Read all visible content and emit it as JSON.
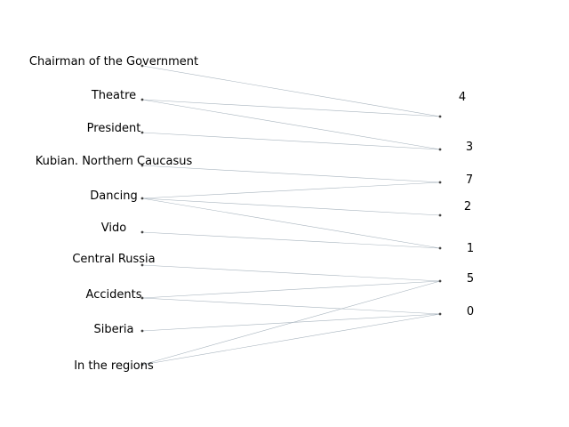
{
  "colors": {
    "edge": "#a8b4be",
    "node": "#444444",
    "text": "#000000",
    "background": "#ffffff"
  },
  "left_nodes": [
    {
      "id": "chairman",
      "label": "Chairman of the Government"
    },
    {
      "id": "theatre",
      "label": "Theatre"
    },
    {
      "id": "president",
      "label": "President"
    },
    {
      "id": "kubian",
      "label": "Kubian. Northern Caucasus"
    },
    {
      "id": "dancing",
      "label": "Dancing"
    },
    {
      "id": "vido",
      "label": "Vido"
    },
    {
      "id": "central_russia",
      "label": "Central Russia"
    },
    {
      "id": "accidents",
      "label": "Accidents"
    },
    {
      "id": "siberia",
      "label": "Siberia"
    },
    {
      "id": "regions",
      "label": "In the regions"
    }
  ],
  "right_nodes": [
    {
      "id": "r4",
      "label": "4"
    },
    {
      "id": "r3",
      "label": "3"
    },
    {
      "id": "r7",
      "label": "7"
    },
    {
      "id": "r2",
      "label": "2"
    },
    {
      "id": "r1",
      "label": "1"
    },
    {
      "id": "r5",
      "label": "5"
    },
    {
      "id": "r0",
      "label": "0"
    }
  ],
  "edges": [
    [
      "chairman",
      "r4"
    ],
    [
      "theatre",
      "r4"
    ],
    [
      "theatre",
      "r3"
    ],
    [
      "president",
      "r3"
    ],
    [
      "kubian",
      "r7"
    ],
    [
      "dancing",
      "r7"
    ],
    [
      "dancing",
      "r2"
    ],
    [
      "dancing",
      "r1"
    ],
    [
      "vido",
      "r1"
    ],
    [
      "central_russia",
      "r5"
    ],
    [
      "accidents",
      "r5"
    ],
    [
      "accidents",
      "r0"
    ],
    [
      "siberia",
      "r0"
    ],
    [
      "regions",
      "r5"
    ],
    [
      "regions",
      "r0"
    ]
  ]
}
